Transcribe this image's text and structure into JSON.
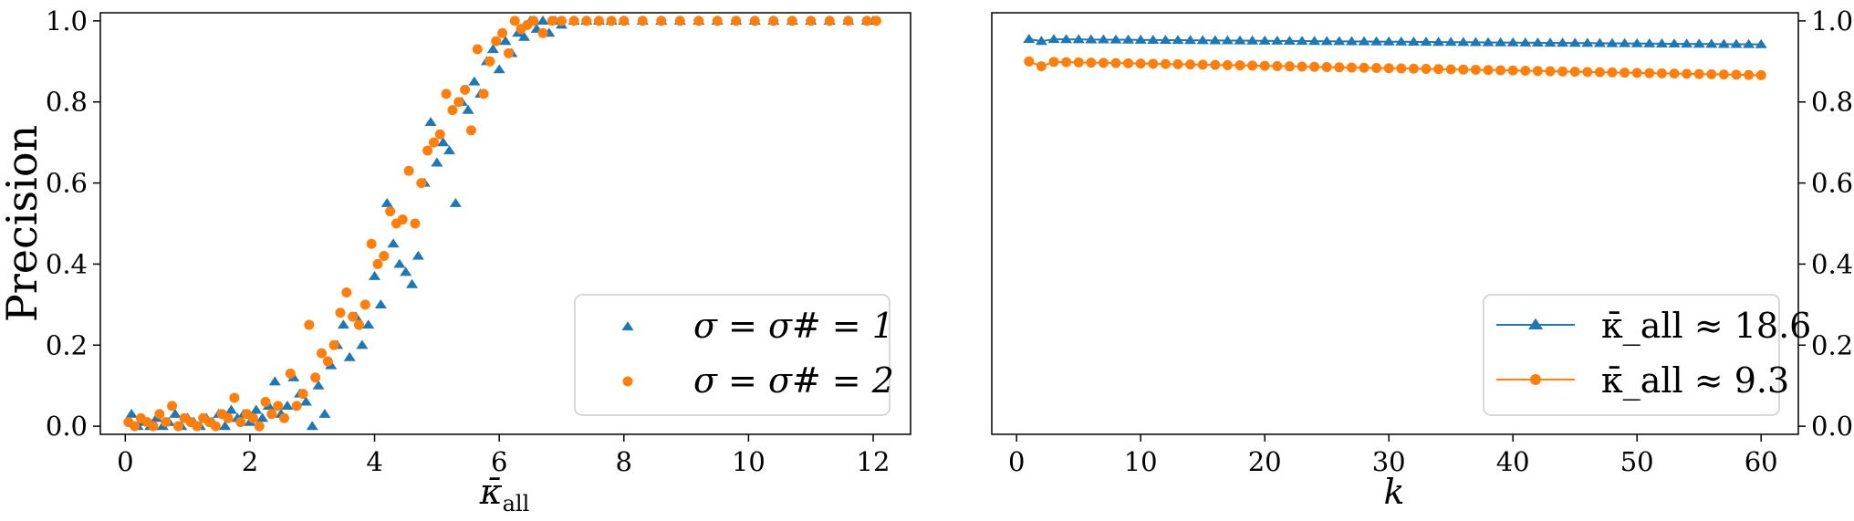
{
  "chart_data": [
    {
      "type": "scatter",
      "title": "",
      "xlabel": "κ̄_all",
      "ylabel": "Precision",
      "xlim": [
        -0.4,
        12.6
      ],
      "ylim": [
        -0.02,
        1.02
      ],
      "xticks": [
        "0",
        "2",
        "4",
        "6",
        "8",
        "10",
        "12"
      ],
      "yticks": [
        "0.0",
        "0.2",
        "0.4",
        "0.6",
        "0.8",
        "1.0"
      ],
      "grid": false,
      "legend_position": "lower-right",
      "colors": {
        "series1": "#1f77b4",
        "series2": "#ff7f0e"
      },
      "series": [
        {
          "name": "σ = σ# = 1",
          "marker": "triangle",
          "x": [
            0.1,
            0.2,
            0.3,
            0.4,
            0.5,
            0.6,
            0.7,
            0.8,
            0.9,
            1.0,
            1.1,
            1.2,
            1.3,
            1.4,
            1.5,
            1.6,
            1.7,
            1.8,
            1.9,
            2.0,
            2.1,
            2.2,
            2.3,
            2.4,
            2.5,
            2.6,
            2.7,
            2.8,
            2.9,
            3.0,
            3.1,
            3.2,
            3.3,
            3.4,
            3.5,
            3.6,
            3.7,
            3.8,
            3.9,
            4.0,
            4.1,
            4.2,
            4.3,
            4.4,
            4.5,
            4.6,
            4.7,
            4.8,
            4.9,
            5.0,
            5.1,
            5.2,
            5.3,
            5.4,
            5.5,
            5.6,
            5.7,
            5.8,
            5.9,
            6.0,
            6.1,
            6.2,
            6.3,
            6.4,
            6.5,
            6.6,
            6.7,
            6.8,
            6.9,
            7.0,
            7.2,
            7.4,
            7.6,
            7.8,
            8.0,
            8.3,
            8.6,
            8.9,
            9.2,
            9.5,
            9.8,
            10.1,
            10.4,
            10.7,
            11.0,
            11.3,
            11.6,
            11.9,
            12.0
          ],
          "y": [
            0.03,
            0.0,
            0.01,
            0.0,
            0.02,
            0.0,
            0.01,
            0.03,
            0.0,
            0.02,
            0.01,
            0.0,
            0.02,
            0.01,
            0.03,
            0.0,
            0.04,
            0.02,
            0.03,
            0.01,
            0.04,
            0.02,
            0.05,
            0.11,
            0.03,
            0.05,
            0.12,
            0.08,
            0.06,
            0.0,
            0.1,
            0.03,
            0.15,
            0.2,
            0.25,
            0.17,
            0.27,
            0.2,
            0.25,
            0.37,
            0.3,
            0.55,
            0.45,
            0.4,
            0.38,
            0.35,
            0.42,
            0.6,
            0.75,
            0.65,
            0.7,
            0.68,
            0.55,
            0.8,
            0.78,
            0.85,
            0.82,
            0.9,
            0.93,
            0.88,
            0.95,
            0.92,
            0.97,
            0.96,
            1.0,
            0.98,
            1.0,
            0.97,
            1.0,
            0.99,
            1.0,
            1.0,
            1.0,
            1.0,
            1.0,
            1.0,
            1.0,
            1.0,
            1.0,
            1.0,
            1.0,
            1.0,
            1.0,
            1.0,
            1.0,
            1.0,
            1.0,
            1.0,
            1.0
          ]
        },
        {
          "name": "σ = σ# = 2",
          "marker": "circle",
          "x": [
            0.05,
            0.15,
            0.25,
            0.35,
            0.45,
            0.55,
            0.65,
            0.75,
            0.85,
            0.95,
            1.05,
            1.15,
            1.25,
            1.35,
            1.45,
            1.55,
            1.65,
            1.75,
            1.85,
            1.95,
            2.05,
            2.15,
            2.25,
            2.35,
            2.45,
            2.55,
            2.65,
            2.75,
            2.85,
            2.95,
            3.05,
            3.15,
            3.25,
            3.35,
            3.45,
            3.55,
            3.65,
            3.75,
            3.85,
            3.95,
            4.05,
            4.15,
            4.25,
            4.35,
            4.45,
            4.55,
            4.65,
            4.75,
            4.85,
            4.95,
            5.05,
            5.15,
            5.25,
            5.35,
            5.45,
            5.55,
            5.65,
            5.75,
            5.85,
            5.95,
            6.05,
            6.15,
            6.25,
            6.35,
            6.45,
            6.55,
            6.7,
            6.85,
            7.0,
            7.2,
            7.4,
            7.6,
            7.8,
            8.0,
            8.3,
            8.6,
            8.9,
            9.2,
            9.5,
            9.8,
            10.1,
            10.4,
            10.7,
            11.0,
            11.3,
            11.6,
            11.9,
            12.05
          ],
          "y": [
            0.01,
            0.0,
            0.02,
            0.01,
            0.0,
            0.03,
            0.01,
            0.05,
            0.0,
            0.02,
            0.01,
            0.0,
            0.02,
            0.01,
            0.0,
            0.03,
            0.02,
            0.07,
            0.01,
            0.03,
            0.02,
            0.0,
            0.06,
            0.03,
            0.05,
            0.02,
            0.13,
            0.05,
            0.08,
            0.25,
            0.12,
            0.18,
            0.16,
            0.2,
            0.28,
            0.33,
            0.27,
            0.25,
            0.3,
            0.45,
            0.4,
            0.42,
            0.53,
            0.5,
            0.51,
            0.63,
            0.5,
            0.6,
            0.68,
            0.7,
            0.72,
            0.82,
            0.78,
            0.8,
            0.83,
            0.73,
            0.93,
            0.82,
            0.9,
            0.95,
            0.97,
            0.92,
            1.0,
            0.98,
            0.99,
            1.0,
            0.97,
            1.0,
            1.0,
            1.0,
            1.0,
            1.0,
            1.0,
            1.0,
            1.0,
            1.0,
            1.0,
            1.0,
            1.0,
            1.0,
            1.0,
            1.0,
            1.0,
            1.0,
            1.0,
            1.0,
            1.0,
            1.0
          ]
        }
      ]
    },
    {
      "type": "line",
      "title": "",
      "xlabel": "k",
      "ylabel": "",
      "xlim": [
        -2,
        63
      ],
      "ylim": [
        -0.02,
        1.02
      ],
      "xticks": [
        "0",
        "10",
        "20",
        "30",
        "40",
        "50",
        "60"
      ],
      "yticks": [
        "0.0",
        "0.2",
        "0.4",
        "0.6",
        "0.8",
        "1.0"
      ],
      "yaxis_side": "right",
      "grid": false,
      "legend_position": "lower-right",
      "x_start": 1,
      "x_end": 60,
      "series": [
        {
          "name": "κ̄_all ≈ 18.6",
          "marker": "triangle",
          "color": "#1f77b4",
          "y_start": 0.955,
          "y_end": 0.942
        },
        {
          "name": "κ̄_all ≈ 9.3",
          "marker": "circle",
          "color": "#ff7f0e",
          "y_start": 0.9,
          "y_end": 0.866
        }
      ]
    }
  ]
}
